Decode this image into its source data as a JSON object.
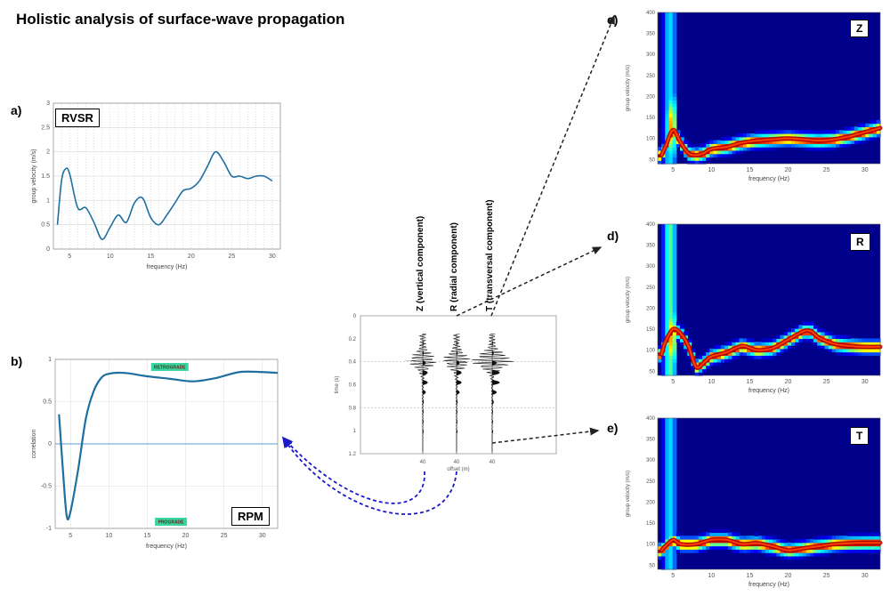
{
  "title": "Holistic analysis of surface-wave propagation",
  "panels": {
    "a": {
      "label": "a)",
      "name": "RVSR",
      "ylabel": "group velocity (m/s)",
      "xlabel": "frequency (Hz)",
      "yticks": [
        "0",
        "0.5",
        "1",
        "1.5",
        "2",
        "2.5",
        "3"
      ],
      "xticks": [
        "5",
        "10",
        "15",
        "20",
        "25",
        "30"
      ]
    },
    "b": {
      "label": "b)",
      "name": "RPM",
      "ylabel": "correlation",
      "xlabel": "frequency (Hz)",
      "yticks": [
        "-1",
        "-0.5",
        "0",
        "0.5",
        "1"
      ],
      "xticks": [
        "5",
        "10",
        "15",
        "20",
        "25",
        "30"
      ],
      "badge_top": "RETROGRADE",
      "badge_bottom": "PROGRADE"
    },
    "c": {
      "label": "c)",
      "name": "Z",
      "ylabel": "group velocity (m/s)",
      "xlabel": "frequency (Hz)",
      "yticks": [
        "50",
        "100",
        "150",
        "200",
        "250",
        "300",
        "350",
        "400"
      ],
      "xticks": [
        "5",
        "10",
        "15",
        "20",
        "25",
        "30"
      ]
    },
    "d": {
      "label": "d)",
      "name": "R",
      "ylabel": "group velocity (m/s)",
      "xlabel": "frequency (Hz)",
      "yticks": [
        "50",
        "100",
        "150",
        "200",
        "250",
        "300",
        "350",
        "400"
      ],
      "xticks": [
        "5",
        "10",
        "15",
        "20",
        "25",
        "30"
      ]
    },
    "e": {
      "label": "e)",
      "name": "T",
      "ylabel": "group velocity (m/s)",
      "xlabel": "frequency (Hz)",
      "yticks": [
        "50",
        "100",
        "150",
        "200",
        "250",
        "300",
        "350",
        "400"
      ],
      "xticks": [
        "5",
        "10",
        "15",
        "20",
        "25",
        "30"
      ]
    }
  },
  "seismogram": {
    "components": {
      "z": "Z (vertical component)",
      "r": "R (radial component)",
      "t": "T (transversal component)"
    },
    "ylabel": "time (s)",
    "xlabel": "offset (m)",
    "yticks": [
      "0",
      "0.2",
      "0.4",
      "0.6",
      "0.8",
      "1",
      "1.2"
    ],
    "xticks": [
      "40",
      "40",
      "40"
    ]
  },
  "colors": {
    "curve": "#1f6fa0",
    "arrow_black": "#222222",
    "arrow_blue": "#1a1ac8",
    "badge": "#3ad6a0",
    "map_background": "#00008b"
  },
  "chart_data": [
    {
      "type": "line",
      "panel": "a",
      "x": [
        3.5,
        4,
        4.5,
        5,
        6,
        7,
        8,
        9,
        10,
        11,
        12,
        13,
        14,
        15,
        16,
        17,
        18,
        19,
        20,
        21,
        22,
        23,
        24,
        25,
        26,
        27,
        28,
        29,
        30
      ],
      "y": [
        0.5,
        1.4,
        1.65,
        1.55,
        0.85,
        0.85,
        0.55,
        0.2,
        0.45,
        0.7,
        0.55,
        0.95,
        1.05,
        0.65,
        0.5,
        0.7,
        0.95,
        1.2,
        1.25,
        1.4,
        1.7,
        2.0,
        1.8,
        1.5,
        1.5,
        1.45,
        1.5,
        1.5,
        1.4
      ],
      "xlim": [
        3,
        31
      ],
      "ylim": [
        0,
        3
      ],
      "grid": true
    },
    {
      "type": "line",
      "panel": "b",
      "x": [
        3.5,
        4,
        4.5,
        5,
        6,
        7,
        8,
        9,
        10,
        12,
        15,
        18,
        21,
        24,
        27,
        30,
        32
      ],
      "y": [
        0.35,
        -0.3,
        -0.85,
        -0.8,
        -0.3,
        0.3,
        0.62,
        0.78,
        0.83,
        0.84,
        0.8,
        0.77,
        0.74,
        0.78,
        0.85,
        0.85,
        0.84
      ],
      "xlim": [
        3,
        32
      ],
      "ylim": [
        -1,
        1
      ],
      "grid": true
    },
    {
      "type": "heatmap",
      "panel": "c",
      "ridge_x": [
        3.5,
        4,
        5,
        6,
        7,
        8,
        9,
        10,
        12,
        14,
        16,
        18,
        20,
        22,
        24,
        26,
        28,
        30,
        32
      ],
      "ridge_y": [
        60,
        80,
        120,
        90,
        65,
        60,
        65,
        75,
        80,
        90,
        95,
        98,
        100,
        98,
        95,
        98,
        105,
        115,
        125
      ],
      "xlim": [
        3,
        32
      ],
      "ylim": [
        40,
        400
      ]
    },
    {
      "type": "heatmap",
      "panel": "d",
      "ridge_x": [
        3.5,
        4,
        5,
        6,
        7,
        8,
        9,
        10,
        12,
        14,
        16,
        18,
        20,
        22,
        23,
        24,
        26,
        28,
        30,
        32
      ],
      "ridge_y": [
        90,
        120,
        150,
        140,
        110,
        60,
        70,
        85,
        95,
        110,
        100,
        105,
        125,
        145,
        145,
        130,
        115,
        110,
        108,
        108
      ],
      "xlim": [
        3,
        32
      ],
      "ylim": [
        40,
        400
      ]
    },
    {
      "type": "heatmap",
      "panel": "e",
      "ridge_x": [
        3.5,
        4,
        5,
        6,
        8,
        10,
        12,
        14,
        16,
        18,
        20,
        22,
        24,
        26,
        28,
        30,
        32
      ],
      "ridge_y": [
        85,
        95,
        110,
        100,
        100,
        110,
        110,
        100,
        102,
        95,
        85,
        90,
        95,
        100,
        102,
        103,
        103
      ],
      "xlim": [
        3,
        32
      ],
      "ylim": [
        40,
        400
      ]
    }
  ]
}
